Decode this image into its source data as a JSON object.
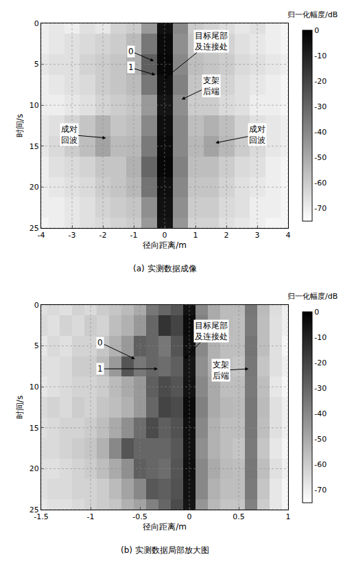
{
  "chart_data": [
    {
      "type": "heatmap",
      "caption": "(a) 实测数据成像",
      "x_label": "径向距离/m",
      "y_label": "时间/s",
      "colorbar_title": "归一化幅度/dB",
      "zlim": [
        -75,
        0
      ],
      "zticks": [
        0,
        -10,
        -20,
        -30,
        -40,
        -50,
        -60,
        -70
      ],
      "xlim": [
        -4,
        4
      ],
      "xticks": [
        -4,
        -3,
        -2,
        -1,
        0,
        1,
        2,
        3,
        4
      ],
      "ylim": [
        25,
        0
      ],
      "yticks": [
        0,
        5,
        10,
        15,
        20,
        25
      ],
      "grid": true,
      "x": [
        -4,
        -3.5,
        -3,
        -2.5,
        -2,
        -1.5,
        -1,
        -0.5,
        0,
        0.5,
        1,
        1.5,
        2,
        2.5,
        3,
        3.5,
        4
      ],
      "y": [
        0,
        2.5,
        5,
        7.5,
        10,
        12.5,
        15,
        17.5,
        20,
        22.5,
        25
      ],
      "z": [
        [
          -70,
          -68,
          -70,
          -66,
          -68,
          -62,
          -60,
          -45,
          -5,
          -40,
          -60,
          -62,
          -65,
          -68,
          -66,
          -70,
          -72
        ],
        [
          -70,
          -68,
          -66,
          -64,
          -62,
          -60,
          -55,
          -35,
          -3,
          -42,
          -58,
          -60,
          -62,
          -66,
          -68,
          -70,
          -72
        ],
        [
          -68,
          -66,
          -66,
          -62,
          -60,
          -58,
          -52,
          -28,
          -2,
          -40,
          -56,
          -58,
          -60,
          -64,
          -66,
          -68,
          -70
        ],
        [
          -70,
          -68,
          -66,
          -64,
          -60,
          -58,
          -55,
          -35,
          -4,
          -38,
          -58,
          -58,
          -62,
          -66,
          -68,
          -70,
          -72
        ],
        [
          -70,
          -70,
          -68,
          -66,
          -62,
          -60,
          -58,
          -45,
          -6,
          -42,
          -60,
          -60,
          -64,
          -66,
          -70,
          -70,
          -72
        ],
        [
          -68,
          -66,
          -62,
          -58,
          -52,
          -58,
          -56,
          -40,
          -4,
          -40,
          -56,
          -52,
          -56,
          -62,
          -66,
          -68,
          -70
        ],
        [
          -68,
          -64,
          -60,
          -56,
          -48,
          -55,
          -54,
          -36,
          -3,
          -40,
          -54,
          -48,
          -54,
          -60,
          -64,
          -68,
          -70
        ],
        [
          -70,
          -66,
          -64,
          -62,
          -58,
          -58,
          -52,
          -30,
          -2,
          -38,
          -56,
          -56,
          -60,
          -64,
          -66,
          -70,
          -72
        ],
        [
          -70,
          -68,
          -66,
          -64,
          -60,
          -58,
          -54,
          -34,
          -4,
          -40,
          -58,
          -58,
          -62,
          -66,
          -68,
          -70,
          -72
        ],
        [
          -70,
          -70,
          -68,
          -66,
          -62,
          -60,
          -58,
          -42,
          -5,
          -42,
          -60,
          -60,
          -64,
          -66,
          -70,
          -70,
          -72
        ],
        [
          -72,
          -70,
          -68,
          -66,
          -64,
          -62,
          -60,
          -45,
          -6,
          -44,
          -62,
          -62,
          -66,
          -68,
          -70,
          -72,
          -72
        ]
      ],
      "annotations": [
        {
          "text": [
            "0"
          ],
          "x": -0.35,
          "y": 4.6,
          "ax": -1.1,
          "ay": 3.4
        },
        {
          "text": [
            "1"
          ],
          "x": -0.3,
          "y": 6.3,
          "ax": -1.1,
          "ay": 5.4
        },
        {
          "text": [
            "目标尾部",
            "及连接处"
          ],
          "x": -0.02,
          "y": 6.8,
          "ax": 1.5,
          "ay": 2.2
        },
        {
          "text": [
            "支架",
            "后端"
          ],
          "x": 0.55,
          "y": 9.3,
          "ax": 1.5,
          "ay": 7.6
        },
        {
          "text": [
            "成对",
            "回波"
          ],
          "x": -1.9,
          "y": 14.0,
          "ax": -3.1,
          "ay": 13.6
        },
        {
          "text": [
            "成对",
            "回波"
          ],
          "x": 1.65,
          "y": 14.6,
          "ax": 3.0,
          "ay": 13.6
        }
      ]
    },
    {
      "type": "heatmap",
      "caption": "(b) 实测数据局部放大图",
      "x_label": "径向距离/m",
      "y_label": "时间/s",
      "colorbar_title": "归一化幅度/dB",
      "zlim": [
        -75,
        0
      ],
      "zticks": [
        0,
        -10,
        -20,
        -30,
        -40,
        -50,
        -60,
        -70
      ],
      "xlim": [
        -1.5,
        1
      ],
      "xticks": [
        -1.5,
        -1,
        -0.5,
        0,
        0.5,
        1
      ],
      "ylim": [
        25,
        0
      ],
      "yticks": [
        0,
        5,
        10,
        15,
        20,
        25
      ],
      "grid": true,
      "x": [
        -1.5,
        -1.375,
        -1.25,
        -1.125,
        -1,
        -0.875,
        -0.75,
        -0.625,
        -0.5,
        -0.375,
        -0.25,
        -0.125,
        0,
        0.125,
        0.25,
        0.375,
        0.5,
        0.625,
        0.75,
        0.875,
        1
      ],
      "y": [
        0,
        2.5,
        5,
        7.5,
        10,
        12.5,
        15,
        17.5,
        20,
        22.5,
        25
      ],
      "z": [
        [
          -66,
          -64,
          -66,
          -62,
          -64,
          -60,
          -58,
          -55,
          -50,
          -35,
          -30,
          -25,
          -5,
          -40,
          -50,
          -55,
          -55,
          -35,
          -55,
          -65,
          -70
        ],
        [
          -64,
          -66,
          -62,
          -64,
          -60,
          -62,
          -56,
          -52,
          -45,
          -30,
          -15,
          -20,
          -3,
          -38,
          -50,
          -55,
          -56,
          -36,
          -56,
          -66,
          -70
        ],
        [
          -68,
          -64,
          -66,
          -62,
          -62,
          -58,
          -52,
          -45,
          -28,
          -30,
          -35,
          -25,
          -4,
          -40,
          -52,
          -56,
          -56,
          -34,
          -56,
          -66,
          -72
        ],
        [
          -66,
          -66,
          -64,
          -60,
          -60,
          -55,
          -45,
          -25,
          -35,
          -30,
          -32,
          -28,
          -6,
          -42,
          -52,
          -56,
          -58,
          -35,
          -58,
          -66,
          -70
        ],
        [
          -68,
          -66,
          -64,
          -62,
          -62,
          -60,
          -55,
          -50,
          -45,
          -28,
          -22,
          -25,
          -5,
          -40,
          -50,
          -56,
          -56,
          -36,
          -56,
          -68,
          -72
        ],
        [
          -64,
          -62,
          -64,
          -60,
          -62,
          -58,
          -56,
          -52,
          -45,
          -30,
          -20,
          -22,
          -3,
          -38,
          -50,
          -54,
          -55,
          -35,
          -55,
          -66,
          -70
        ],
        [
          -66,
          -64,
          -62,
          -62,
          -60,
          -56,
          -50,
          -42,
          -32,
          -22,
          -28,
          -24,
          -4,
          -40,
          -52,
          -56,
          -56,
          -35,
          -56,
          -66,
          -70
        ],
        [
          -64,
          -64,
          -62,
          -60,
          -58,
          -52,
          -40,
          -25,
          -30,
          -30,
          -30,
          -26,
          -5,
          -42,
          -52,
          -56,
          -58,
          -36,
          -58,
          -68,
          -72
        ],
        [
          -66,
          -66,
          -64,
          -62,
          -60,
          -56,
          -50,
          -42,
          -28,
          -30,
          -32,
          -25,
          -4,
          -40,
          -50,
          -55,
          -56,
          -35,
          -56,
          -66,
          -70
        ],
        [
          -66,
          -64,
          -64,
          -62,
          -62,
          -60,
          -55,
          -48,
          -40,
          -26,
          -28,
          -24,
          -5,
          -40,
          -52,
          -56,
          -56,
          -36,
          -58,
          -68,
          -72
        ],
        [
          -68,
          -66,
          -66,
          -64,
          -62,
          -60,
          -58,
          -52,
          -48,
          -38,
          -30,
          -22,
          -6,
          -44,
          -54,
          -58,
          -58,
          -38,
          -60,
          -68,
          -72
        ]
      ],
      "annotations": [
        {
          "text": [
            "0"
          ],
          "x": -0.55,
          "y": 6.6,
          "ax": -0.9,
          "ay": 4.6
        },
        {
          "text": [
            "1"
          ],
          "x": -0.32,
          "y": 7.8,
          "ax": -0.9,
          "ay": 7.8
        },
        {
          "text": [
            "目标尾部",
            "及连接处"
          ],
          "x": -0.05,
          "y": 6.6,
          "ax": 0.22,
          "ay": 3.2
        },
        {
          "text": [
            "支架",
            "后端"
          ],
          "x": 0.6,
          "y": 7.8,
          "ax": 0.32,
          "ay": 8.0
        }
      ]
    }
  ]
}
